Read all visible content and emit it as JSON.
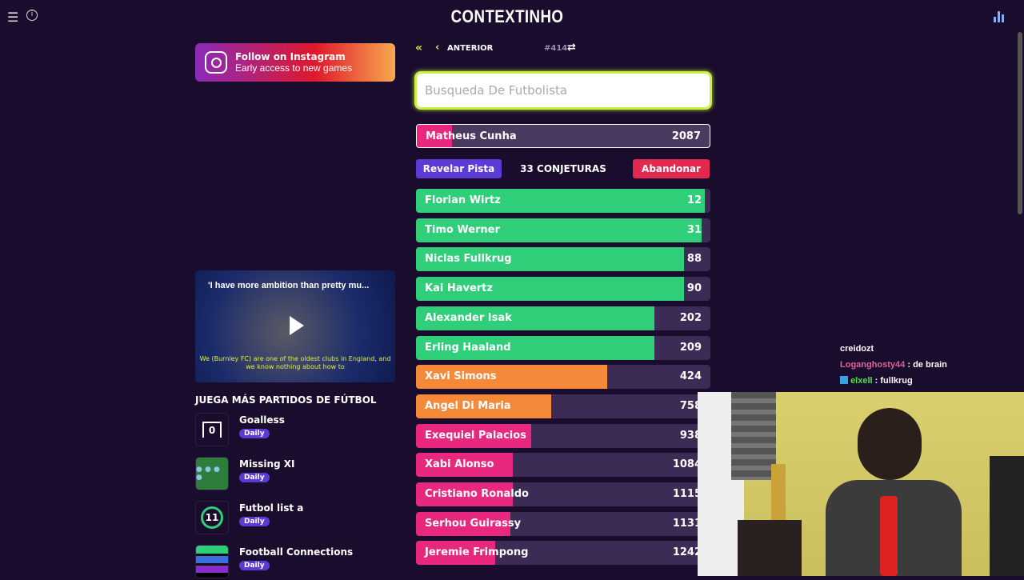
{
  "header": {
    "title": "CONTEXTINHO",
    "menu_icon": "hamburger-icon",
    "info_icon": "info-icon",
    "stats_icon": "bar-chart-icon"
  },
  "promo": {
    "title": "Follow on Instagram",
    "subtitle": "Early access to new games"
  },
  "video": {
    "title": "'I have more ambition than pretty mu...",
    "subtitle": "We (Burnley FC) are one of the oldest clubs in England, and we know nothing about how to"
  },
  "more_games": {
    "heading": "JUEGA MÁS PARTIDOS DE FÚTBOL",
    "items": [
      {
        "name": "Goalless",
        "badge": "Daily",
        "icon_text": "0"
      },
      {
        "name": "Missing XI",
        "badge": "Daily"
      },
      {
        "name": "Futbol list a",
        "badge": "Daily",
        "icon_text": "11"
      },
      {
        "name": "Football Connections",
        "badge": "Daily"
      }
    ]
  },
  "nav": {
    "first_icon": "double-chevron-left-icon",
    "prev_label": "ANTERIOR",
    "game_number": "#414",
    "shuffle_icon": "shuffle-icon"
  },
  "search": {
    "placeholder": "Busqueda De Futbolista",
    "value": ""
  },
  "current_guess": {
    "name": "Matheus Cunha",
    "rank": "2087",
    "fill_pct": 12
  },
  "actions": {
    "hint": "Revelar Pista",
    "count": "33 CONJETURAS",
    "give_up": "Abandonar"
  },
  "colors": {
    "green": "#2fcf7a",
    "orange": "#f5893a",
    "pink": "#e8287f",
    "track": "#3c2c55",
    "accent": "#c8f03c",
    "hint": "#5a3bd6",
    "give_up": "#e3294f"
  },
  "guesses": [
    {
      "name": "Florian Wirtz",
      "rank": "12",
      "fill_pct": 98,
      "color": "green"
    },
    {
      "name": "Timo Werner",
      "rank": "31",
      "fill_pct": 97,
      "color": "green"
    },
    {
      "name": "Niclas Fullkrug",
      "rank": "88",
      "fill_pct": 91,
      "color": "green"
    },
    {
      "name": "Kai Havertz",
      "rank": "90",
      "fill_pct": 91,
      "color": "green"
    },
    {
      "name": "Alexander Isak",
      "rank": "202",
      "fill_pct": 81,
      "color": "green"
    },
    {
      "name": "Erling Haaland",
      "rank": "209",
      "fill_pct": 81,
      "color": "green"
    },
    {
      "name": "Xavi Simons",
      "rank": "424",
      "fill_pct": 65,
      "color": "orange"
    },
    {
      "name": "Angel Di Maria",
      "rank": "758",
      "fill_pct": 46,
      "color": "orange"
    },
    {
      "name": "Exequiel Palacios",
      "rank": "938",
      "fill_pct": 39,
      "color": "pink"
    },
    {
      "name": "Xabi Alonso",
      "rank": "1084",
      "fill_pct": 33,
      "color": "pink"
    },
    {
      "name": "Cristiano Ronaldo",
      "rank": "1115",
      "fill_pct": 33,
      "color": "pink"
    },
    {
      "name": "Serhou Guirassy",
      "rank": "1131",
      "fill_pct": 32,
      "color": "pink"
    },
    {
      "name": "Jeremie Frimpong",
      "rank": "1242",
      "fill_pct": 27,
      "color": "pink"
    }
  ],
  "chat": [
    {
      "user": "creidozt",
      "text": ""
    },
    {
      "user": "Loganghosty44",
      "text": ": de brain",
      "color": "#e0609a"
    },
    {
      "user": "elxell",
      "text": ": fullkrug",
      "color": "#4fe04a"
    }
  ]
}
